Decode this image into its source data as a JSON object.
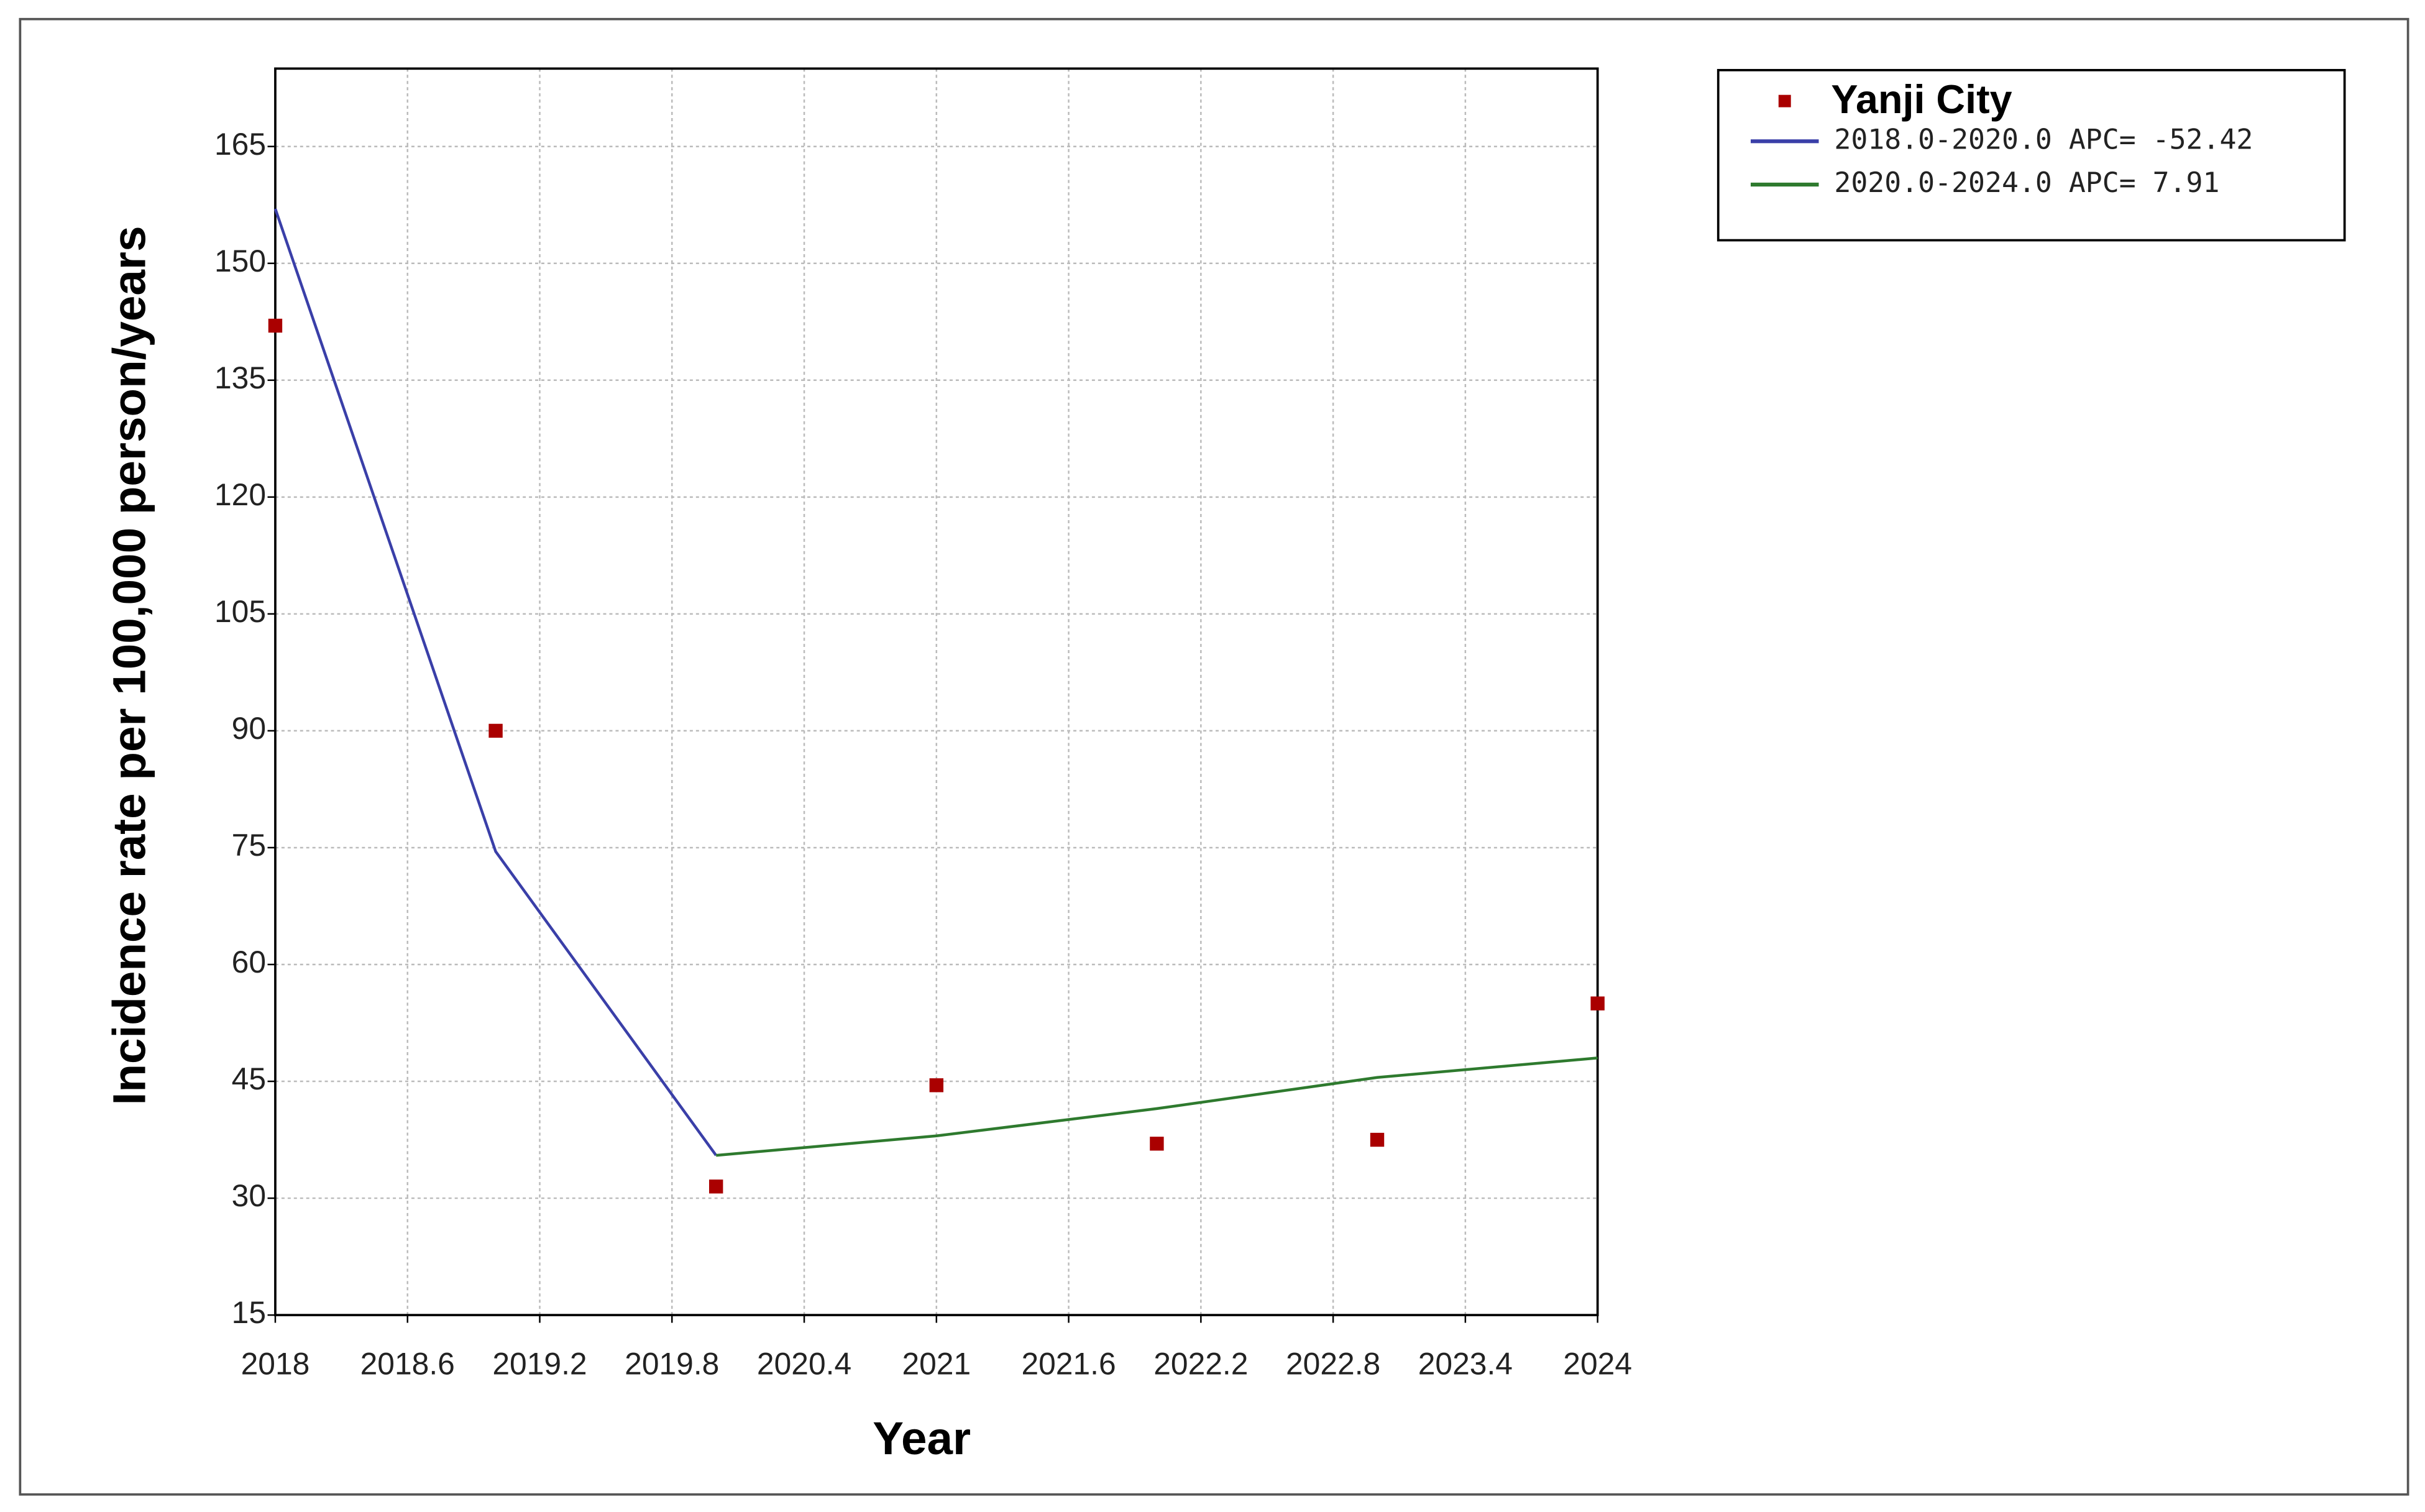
{
  "chart_data": {
    "type": "line",
    "x_label": "Year",
    "y_label": "Incidence rate per 100,000 person/years",
    "xlim": [
      2018,
      2024
    ],
    "xticks": [
      2018,
      2018.6,
      2019.2,
      2019.8,
      2020.4,
      2021,
      2021.6,
      2022.2,
      2022.8,
      2023.4,
      2024
    ],
    "ylim": [
      15,
      175
    ],
    "yticks": [
      15,
      30,
      45,
      60,
      75,
      90,
      105,
      120,
      135,
      150,
      165
    ],
    "grid": true,
    "legend": "outside-right",
    "series": [
      {
        "name": "Yanji City",
        "mode": "markers",
        "color": "#aa0000",
        "x": [
          2018,
          2019,
          2020,
          2021,
          2022,
          2023,
          2024
        ],
        "values": [
          142,
          90,
          31.5,
          44.5,
          37,
          37.5,
          55
        ]
      },
      {
        "name": "2018.0-2020.0 APC= -52.42",
        "mode": "line",
        "color": "#3a3fa8",
        "x": [
          2018,
          2019,
          2020
        ],
        "values": [
          157,
          74.5,
          35.5
        ]
      },
      {
        "name": "2020.0-2024.0 APC= 7.91",
        "mode": "line",
        "color": "#2e7a2e",
        "x": [
          2020,
          2021,
          2022,
          2023,
          2024
        ],
        "values": [
          35.5,
          38,
          41.5,
          45.5,
          48
        ]
      }
    ]
  }
}
